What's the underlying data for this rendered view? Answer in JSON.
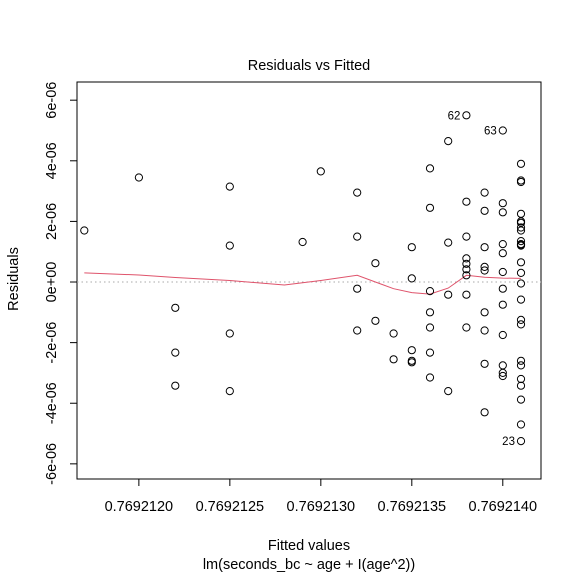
{
  "chart_data": {
    "type": "scatter",
    "title": "Residuals vs Fitted",
    "xlabel": "Fitted values",
    "subtitle": "lm(seconds_bc ~ age + I(age^2))",
    "ylabel": "Residuals",
    "xlim": [
      0.76921166,
      0.76921421
    ],
    "ylim": [
      -6.5e-06,
      6.6e-06
    ],
    "x_ticks": [
      {
        "value": 0.769212,
        "label": "0.7692120"
      },
      {
        "value": 0.7692125,
        "label": "0.7692125"
      },
      {
        "value": 0.769213,
        "label": "0.7692130"
      },
      {
        "value": 0.7692135,
        "label": "0.7692135"
      },
      {
        "value": 0.769214,
        "label": "0.7692140"
      }
    ],
    "y_ticks": [
      {
        "value": -6e-06,
        "label": "-6e-06"
      },
      {
        "value": -4e-06,
        "label": "-4e-06"
      },
      {
        "value": -2e-06,
        "label": "-2e-06"
      },
      {
        "value": 0,
        "label": "0e+00"
      },
      {
        "value": 2e-06,
        "label": "2e-06"
      },
      {
        "value": 4e-06,
        "label": "4e-06"
      },
      {
        "value": 6e-06,
        "label": "6e-06"
      }
    ],
    "reference_line": {
      "y": 0,
      "style": "dotted",
      "color": "#a8a8a8"
    },
    "point_color": "#000000",
    "smoother_color": "#df536b",
    "points": [
      [
        0.7692117,
        1.7e-06
      ],
      [
        0.769212,
        3.45e-06
      ],
      [
        0.7692122,
        -8.5e-07
      ],
      [
        0.7692122,
        -2.33e-06
      ],
      [
        0.7692122,
        -3.42e-06
      ],
      [
        0.7692125,
        3.15e-06
      ],
      [
        0.7692125,
        1.2e-06
      ],
      [
        0.7692125,
        -1.7e-06
      ],
      [
        0.7692125,
        -3.6e-06
      ],
      [
        0.7692129,
        1.32e-06
      ],
      [
        0.769213,
        3.65e-06
      ],
      [
        0.7692132,
        2.95e-06
      ],
      [
        0.7692132,
        -2.2e-07
      ],
      [
        0.7692132,
        -1.6e-06
      ],
      [
        0.7692132,
        1.5e-06
      ],
      [
        0.7692133,
        6.2e-07
      ],
      [
        0.7692133,
        -1.28e-06
      ],
      [
        0.7692135,
        1.15e-06
      ],
      [
        0.7692135,
        1.2e-07
      ],
      [
        0.7692135,
        -2.25e-06
      ],
      [
        0.7692135,
        -2.65e-06
      ],
      [
        0.7692135,
        -2.6e-06
      ],
      [
        0.7692134,
        -1.7e-06
      ],
      [
        0.7692134,
        -2.55e-06
      ],
      [
        0.7692136,
        2.45e-06
      ],
      [
        0.7692136,
        -3e-07
      ],
      [
        0.7692136,
        -1e-06
      ],
      [
        0.7692136,
        -2.33e-06
      ],
      [
        0.7692136,
        3.75e-06
      ],
      [
        0.7692136,
        -1.5e-06
      ],
      [
        0.7692136,
        -3.15e-06
      ],
      [
        0.7692137,
        4.65e-06
      ],
      [
        0.7692137,
        1.3e-06
      ],
      [
        0.7692137,
        -4.2e-07
      ],
      [
        0.7692137,
        -3.6e-06
      ],
      [
        0.7692138,
        5.5e-06
      ],
      [
        0.7692138,
        2.65e-06
      ],
      [
        0.7692138,
        7.8e-07
      ],
      [
        0.7692138,
        6e-07
      ],
      [
        0.7692138,
        4.2e-07
      ],
      [
        0.7692138,
        2.2e-07
      ],
      [
        0.7692138,
        -4.2e-07
      ],
      [
        0.7692138,
        -1.5e-06
      ],
      [
        0.7692138,
        1.5e-06
      ],
      [
        0.7692139,
        2.95e-06
      ],
      [
        0.7692139,
        2.35e-06
      ],
      [
        0.7692139,
        1.15e-06
      ],
      [
        0.7692139,
        5e-07
      ],
      [
        0.7692139,
        3.8e-07
      ],
      [
        0.7692139,
        -1e-06
      ],
      [
        0.7692139,
        -1.6e-06
      ],
      [
        0.7692139,
        -2.7e-06
      ],
      [
        0.7692139,
        -4.3e-06
      ],
      [
        0.769214,
        5e-06
      ],
      [
        0.769214,
        1.25e-06
      ],
      [
        0.769214,
        -2.2e-07
      ],
      [
        0.769214,
        -2.75e-06
      ],
      [
        0.769214,
        -3e-06
      ],
      [
        0.769214,
        2.6e-06
      ],
      [
        0.769214,
        2.3e-06
      ],
      [
        0.769214,
        9.5e-07
      ],
      [
        0.769214,
        3.3e-07
      ],
      [
        0.769214,
        -7.5e-07
      ],
      [
        0.769214,
        -1.75e-06
      ],
      [
        0.769214,
        -3.1e-06
      ],
      [
        0.7692141,
        3.3e-06
      ],
      [
        0.7692141,
        1.35e-06
      ],
      [
        0.7692141,
        -1.25e-06
      ],
      [
        0.7692141,
        -3.2e-06
      ],
      [
        0.7692141,
        -4.7e-06
      ],
      [
        0.7692141,
        -5.25e-06
      ],
      [
        0.7692141,
        3.9e-06
      ],
      [
        0.7692141,
        3.35e-06
      ],
      [
        0.7692141,
        2.25e-06
      ],
      [
        0.7692141,
        2e-06
      ],
      [
        0.7692141,
        1.95e-06
      ],
      [
        0.7692141,
        1.8e-06
      ],
      [
        0.7692141,
        1.7e-06
      ],
      [
        0.7692141,
        1.25e-06
      ],
      [
        0.7692141,
        1.2e-06
      ],
      [
        0.7692141,
        6.5e-07
      ],
      [
        0.7692141,
        3e-07
      ],
      [
        0.7692141,
        -5e-08
      ],
      [
        0.7692141,
        -5.8e-07
      ],
      [
        0.7692141,
        -1.4e-06
      ],
      [
        0.7692141,
        -2.6e-06
      ],
      [
        0.7692141,
        -2.75e-06
      ],
      [
        0.7692141,
        -3.42e-06
      ],
      [
        0.7692141,
        -3.88e-06
      ],
      [
        0.7692141,
        1.23e-06
      ]
    ],
    "labeled_points": [
      {
        "label": "62",
        "x": 0.7692138,
        "y": 5.5e-06
      },
      {
        "label": "63",
        "x": 0.769214,
        "y": 5e-06
      },
      {
        "label": "23",
        "x": 0.7692141,
        "y": -5.25e-06
      }
    ],
    "smoother": [
      [
        0.7692117,
        3e-07
      ],
      [
        0.769212,
        2.3e-07
      ],
      [
        0.7692122,
        1.5e-07
      ],
      [
        0.7692125,
        5e-08
      ],
      [
        0.7692128,
        -1e-07
      ],
      [
        0.769213,
        5e-08
      ],
      [
        0.7692132,
        2.2e-07
      ],
      [
        0.7692134,
        -2.2e-07
      ],
      [
        0.7692135,
        -3.5e-07
      ],
      [
        0.7692136,
        -4e-07
      ],
      [
        0.7692137,
        -2e-07
      ],
      [
        0.7692138,
        2.2e-07
      ],
      [
        0.7692139,
        1.6e-07
      ],
      [
        0.769214,
        1.3e-07
      ],
      [
        0.7692141,
        1.2e-07
      ]
    ]
  }
}
